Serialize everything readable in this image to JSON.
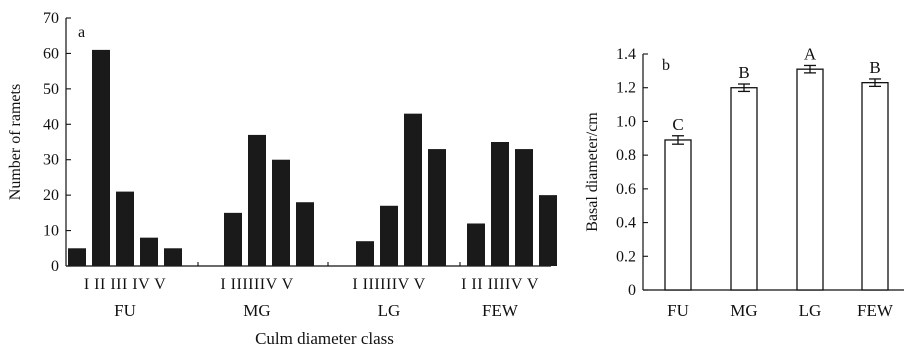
{
  "chart_data": [
    {
      "type": "bar",
      "panel_label": "a",
      "xlabel": "Culm diameter class",
      "ylabel": "Number of ramets",
      "ylim": [
        0,
        70
      ],
      "yticks": [
        "0",
        "10",
        "20",
        "30",
        "40",
        "50",
        "60",
        "70"
      ],
      "groups": [
        {
          "name": "FU",
          "classes": [
            "I",
            "II",
            "III",
            "IV",
            "V"
          ],
          "values": [
            5,
            61,
            21,
            8,
            5
          ]
        },
        {
          "name": "MG",
          "classes": [
            "I",
            "II",
            "III",
            "IV",
            "V"
          ],
          "values": [
            0,
            15,
            37,
            30,
            18
          ]
        },
        {
          "name": "LG",
          "classes": [
            "I",
            "II",
            "III",
            "IV",
            "V"
          ],
          "values": [
            0,
            7,
            17,
            43,
            33
          ]
        },
        {
          "name": "FEW",
          "classes": [
            "I",
            "II",
            "III",
            "IV",
            "V"
          ],
          "values": [
            0,
            12,
            35,
            33,
            20
          ]
        }
      ],
      "class_tick_labels": [
        [
          "I",
          "II",
          "III",
          "IV",
          "V"
        ],
        [
          "I",
          "IIIIIIV",
          "V"
        ],
        [
          "I",
          "IIIIIIV",
          "V"
        ],
        [
          "I",
          "II",
          "IIIIV",
          "V"
        ]
      ]
    },
    {
      "type": "bar",
      "panel_label": "b",
      "xlabel": "",
      "ylabel": "Basal diameter/cm",
      "ylim": [
        0,
        1.4
      ],
      "yticks": [
        "0",
        "0.2",
        "0.4",
        "0.6",
        "0.8",
        "1.0",
        "1.2",
        "1.4"
      ],
      "categories": [
        "FU",
        "MG",
        "LG",
        "FEW"
      ],
      "values": [
        0.89,
        1.2,
        1.31,
        1.23
      ],
      "errors": [
        0.025,
        0.022,
        0.022,
        0.022
      ],
      "significance_letters": [
        "C",
        "B",
        "A",
        "B"
      ]
    }
  ]
}
